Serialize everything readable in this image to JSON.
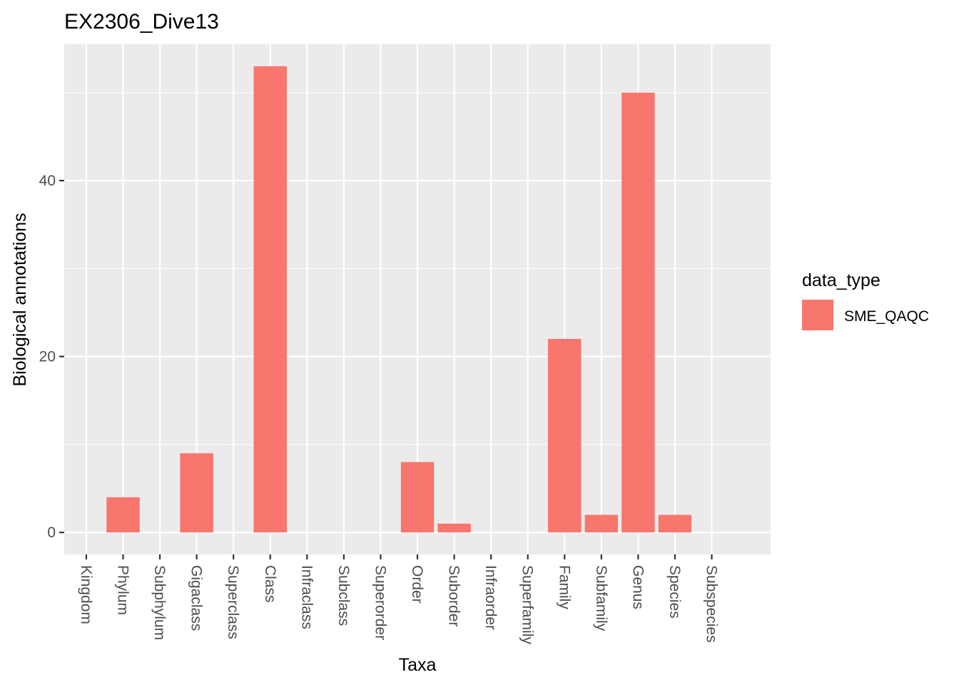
{
  "chart_data": {
    "type": "bar",
    "title": "EX2306_Dive13",
    "xlabel": "Taxa",
    "ylabel": "Biological annotations",
    "categories": [
      "Kingdom",
      "Phylum",
      "Subphylum",
      "Gigaclass",
      "Superclass",
      "Class",
      "Infraclass",
      "Subclass",
      "Superorder",
      "Order",
      "Suborder",
      "Infraorder",
      "Superfamily",
      "Family",
      "Subfamily",
      "Genus",
      "Species",
      "Subspecies"
    ],
    "series": [
      {
        "name": "SME_QAQC",
        "color": "#F8766D",
        "values": [
          0,
          4,
          0,
          9,
          0,
          53,
          0,
          0,
          0,
          8,
          1,
          0,
          0,
          22,
          2,
          50,
          2,
          0
        ]
      }
    ],
    "ylim": [
      -2.5,
      55.5
    ],
    "yticks": [
      0,
      20,
      40
    ],
    "ytick_labels": [
      "0",
      "20",
      "40"
    ],
    "grid": true,
    "panel_background": "#EBEBEB",
    "grid_color": "#FFFFFF",
    "x_tick_label_rotation": "vertical",
    "legend": {
      "title": "data_type",
      "placement": "right",
      "entries": [
        "SME_QAQC"
      ]
    }
  }
}
